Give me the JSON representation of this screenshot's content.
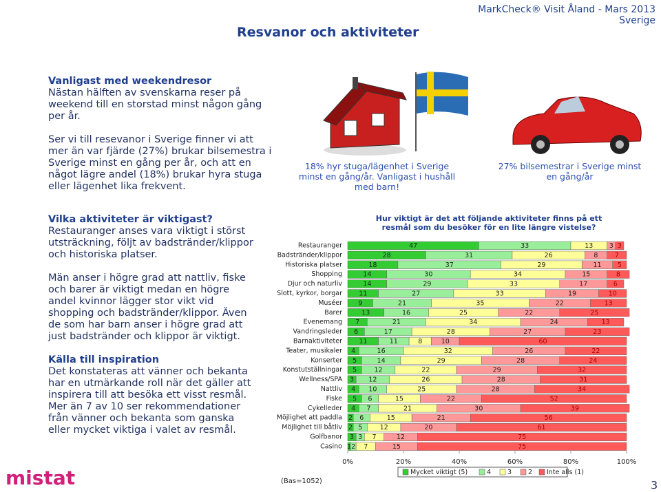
{
  "header": {
    "title": "Resvanor och aktiviteter",
    "brand": "MarkCheck® Visit Åland - Mars 2013",
    "country": "Sverige"
  },
  "left_text": [
    {
      "heading": "Vanligast med weekendresor",
      "body": "Nästan hälften av svenskarna reser på weekend till en storstad minst någon gång per år."
    },
    {
      "body": "Ser vi till resevanor i Sverige finner vi att mer än var fjärde (27%) brukar bilsemestra i Sverige minst en gång per år, och att en något lägre andel (18%) brukar hyra stuga eller lägenhet lika frekvent."
    },
    {
      "heading": "Vilka aktiviteter är viktigast?",
      "body": "Restauranger anses vara viktigt i störst utsträckning, följt av badstränder/klippor och historiska platser."
    },
    {
      "body": "Män anser i högre grad att nattliv, fiske och barer är viktigt medan en högre andel kvinnor lägger stor vikt vid shopping och badstränder/klippor. Även de som har barn anser i högre grad att just badstränder och klippor är viktigt."
    },
    {
      "heading": "Källa till inspiration",
      "body": "Det konstateras att vänner och bekanta har en utmärkande roll när det gäller att inspirera till att besöka ett visst resmål. Mer än 7 av 10 ser rekommendationer från vänner och bekanta som ganska eller mycket viktiga i valet av resmål."
    }
  ],
  "captions": [
    "18% hyr stuga/lägenhet i Sverige minst en gång/år. Vanligast i hushåll med barn!",
    "27% bilsemestrar i Sverige minst en gång/år"
  ],
  "chart_data": {
    "type": "stacked-bar-horizontal",
    "title": "Hur viktigt är det att följande aktiviteter finns på ett resmål som du besöker för en lite längre vistelse?",
    "categories": [
      "Restauranger",
      "Badstränder/klippor",
      "Historiska platser",
      "Shopping",
      "Djur och naturliv",
      "Slott, kyrkor, borgar",
      "Muséer",
      "Barer",
      "Evenemang",
      "Vandringsleder",
      "Barnaktiviteter",
      "Teater, musikaler",
      "Konserter",
      "Konstutställningar",
      "Wellness/SPA",
      "Nattliv",
      "Fiske",
      "Cykelleder",
      "Möjlighet att paddla",
      "Möjlighet till båtliv",
      "Golfbanor",
      "Casino"
    ],
    "series": [
      {
        "name": "Mycket viktigt (5)",
        "color": "#33cc33",
        "values": [
          47,
          28,
          18,
          14,
          14,
          11,
          9,
          13,
          7,
          6,
          11,
          4,
          5,
          5,
          3,
          4,
          5,
          4,
          2,
          2,
          3,
          1
        ]
      },
      {
        "name": "4",
        "color": "#99ee99",
        "values": [
          33,
          31,
          37,
          30,
          29,
          27,
          21,
          16,
          21,
          17,
          11,
          16,
          14,
          12,
          12,
          10,
          6,
          7,
          6,
          5,
          3,
          2
        ]
      },
      {
        "name": "3",
        "color": "#ffff99",
        "values": [
          13,
          26,
          29,
          34,
          33,
          33,
          35,
          25,
          34,
          28,
          8,
          32,
          29,
          22,
          26,
          25,
          15,
          21,
          15,
          12,
          7,
          7
        ]
      },
      {
        "name": "2",
        "color": "#ff9999",
        "values": [
          3,
          8,
          11,
          15,
          17,
          19,
          22,
          22,
          24,
          27,
          10,
          26,
          28,
          29,
          28,
          28,
          22,
          30,
          21,
          20,
          12,
          15
        ]
      },
      {
        "name": "Inte alls (1)",
        "color": "#ff5a5a",
        "values": [
          3,
          7,
          5,
          8,
          6,
          10,
          13,
          25,
          13,
          23,
          60,
          22,
          24,
          32,
          31,
          34,
          52,
          39,
          56,
          61,
          75,
          75
        ]
      }
    ],
    "xlim": [
      0,
      100
    ],
    "xticks": [
      {
        "value": 0,
        "label": "0%"
      },
      {
        "value": 20,
        "label": "20%"
      },
      {
        "value": 40,
        "label": "40%"
      },
      {
        "value": 60,
        "label": "60%"
      },
      {
        "value": 80,
        "label": "80%"
      },
      {
        "value": 100,
        "label": "100%"
      }
    ],
    "note": "(Bas=1052)"
  },
  "footer": {
    "logo": "mistat",
    "page": "3"
  }
}
